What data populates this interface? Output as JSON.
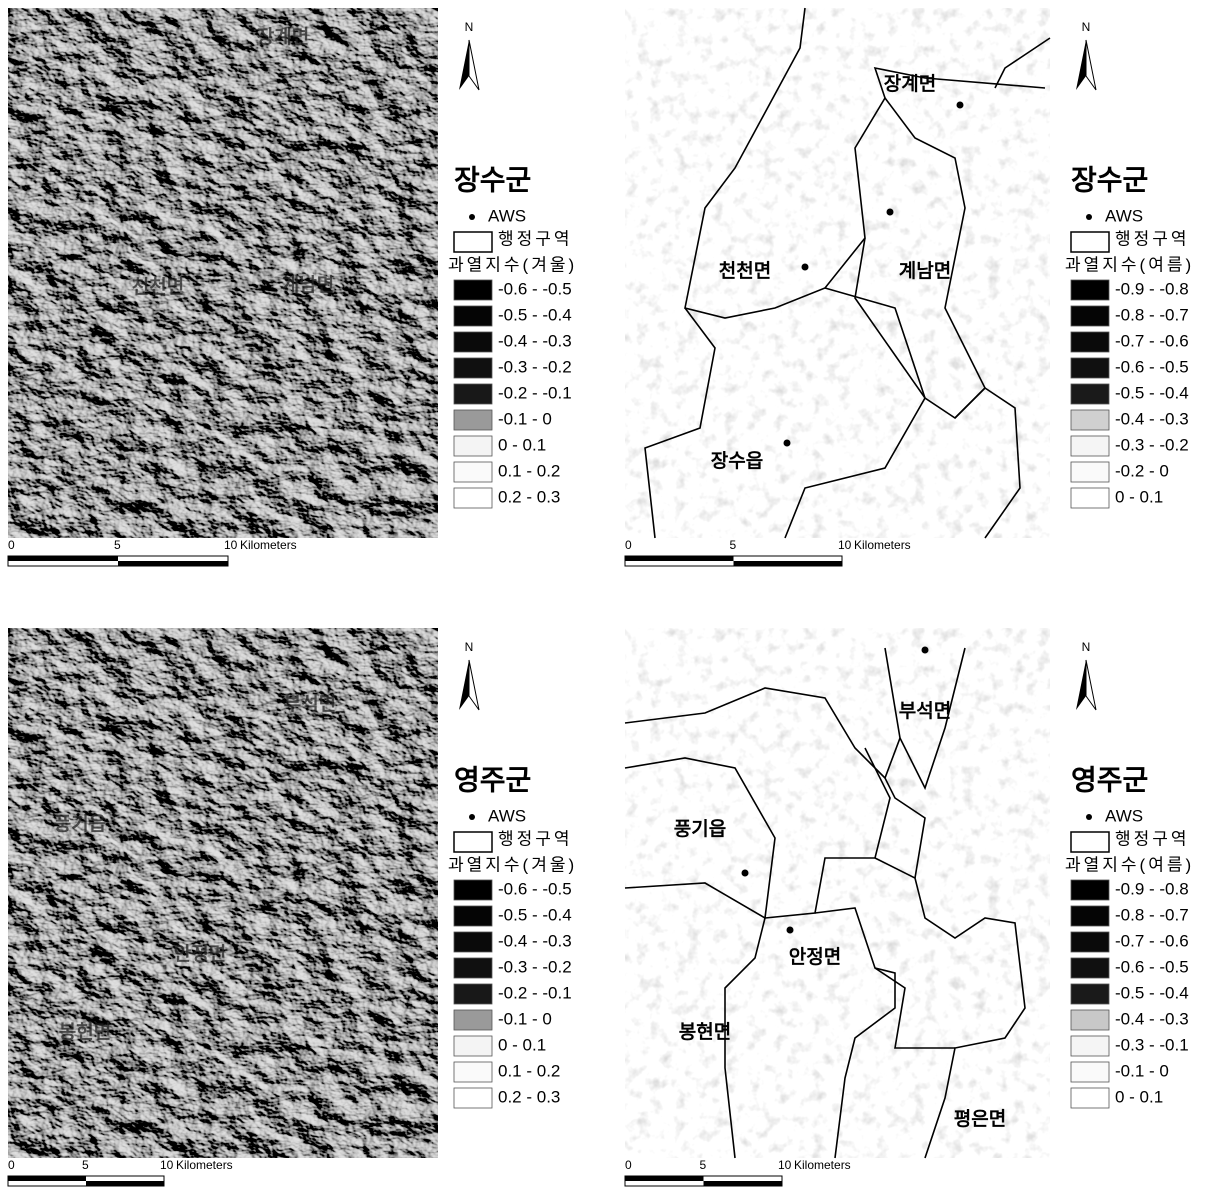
{
  "panels": [
    {
      "place_labels": [
        "장계면",
        "천천면",
        "계남면"
      ],
      "north": "N",
      "legend": {
        "title": "장수군",
        "aws": "AWS",
        "admin": "행정구역",
        "index_title": "과열지수(겨울)",
        "items": [
          {
            "label": "-0.6 - -0.5",
            "color": "#000000"
          },
          {
            "label": "-0.5 - -0.4",
            "color": "#050505"
          },
          {
            "label": "-0.4 - -0.3",
            "color": "#0a0a0a"
          },
          {
            "label": "-0.3 - -0.2",
            "color": "#101010"
          },
          {
            "label": "-0.2 - -0.1",
            "color": "#181818"
          },
          {
            "label": "-0.1 - 0",
            "color": "#9a9a9a"
          },
          {
            "label": "0 - 0.1",
            "color": "#f4f4f4"
          },
          {
            "label": "0.1 - 0.2",
            "color": "#fafafa"
          },
          {
            "label": "0.2 - 0.3",
            "color": "#ffffff"
          }
        ]
      },
      "scale": {
        "ticks": [
          "0",
          "5",
          "10"
        ],
        "unit": "Kilometers"
      }
    },
    {
      "place_labels": [
        "장계면",
        "천천면",
        "계남면",
        "장수읍"
      ],
      "north": "N",
      "legend": {
        "title": "장수군",
        "aws": "AWS",
        "admin": "행정구역",
        "index_title": "과열지수(여름)",
        "items": [
          {
            "label": "-0.9 - -0.8",
            "color": "#000000"
          },
          {
            "label": "-0.8 - -0.7",
            "color": "#050505"
          },
          {
            "label": "-0.7 - -0.6",
            "color": "#0a0a0a"
          },
          {
            "label": "-0.6 - -0.5",
            "color": "#101010"
          },
          {
            "label": "-0.5 - -0.4",
            "color": "#1a1a1a"
          },
          {
            "label": "-0.4 - -0.3",
            "color": "#d0d0d0"
          },
          {
            "label": "-0.3 - -0.2",
            "color": "#f5f5f5"
          },
          {
            "label": "-0.2 - 0",
            "color": "#fafafa"
          },
          {
            "label": "0 - 0.1",
            "color": "#ffffff"
          }
        ]
      },
      "scale": {
        "ticks": [
          "0",
          "5",
          "10"
        ],
        "unit": "Kilometers"
      }
    },
    {
      "place_labels": [
        "부석면",
        "풍기읍",
        "안정면",
        "봉현면"
      ],
      "north": "N",
      "legend": {
        "title": "영주군",
        "aws": "AWS",
        "admin": "행정구역",
        "index_title": "과열지수(겨울)",
        "items": [
          {
            "label": "-0.6 - -0.5",
            "color": "#000000"
          },
          {
            "label": "-0.5 - -0.4",
            "color": "#050505"
          },
          {
            "label": "-0.4 - -0.3",
            "color": "#0a0a0a"
          },
          {
            "label": "-0.3 - -0.2",
            "color": "#101010"
          },
          {
            "label": "-0.2 - -0.1",
            "color": "#181818"
          },
          {
            "label": "-0.1 - 0",
            "color": "#9a9a9a"
          },
          {
            "label": "0 - 0.1",
            "color": "#f4f4f4"
          },
          {
            "label": "0.1 - 0.2",
            "color": "#fafafa"
          },
          {
            "label": "0.2 - 0.3",
            "color": "#ffffff"
          }
        ]
      },
      "scale": {
        "ticks": [
          "0",
          "5",
          "10"
        ],
        "unit": "Kilometers"
      }
    },
    {
      "place_labels": [
        "부석면",
        "풍기읍",
        "안정면",
        "봉현면",
        "평은면"
      ],
      "north": "N",
      "legend": {
        "title": "영주군",
        "aws": "AWS",
        "admin": "행정구역",
        "index_title": "과열지수(여름)",
        "items": [
          {
            "label": "-0.9 - -0.8",
            "color": "#000000"
          },
          {
            "label": "-0.8 - -0.7",
            "color": "#050505"
          },
          {
            "label": "-0.7 - -0.6",
            "color": "#0a0a0a"
          },
          {
            "label": "-0.6 - -0.5",
            "color": "#101010"
          },
          {
            "label": "-0.5 - -0.4",
            "color": "#1a1a1a"
          },
          {
            "label": "-0.4 - -0.3",
            "color": "#c8c8c8"
          },
          {
            "label": "-0.3 - -0.1",
            "color": "#f5f5f5"
          },
          {
            "label": "-0.1 - 0",
            "color": "#fafafa"
          },
          {
            "label": "0 - 0.1",
            "color": "#ffffff"
          }
        ]
      },
      "scale": {
        "ticks": [
          "0",
          "5",
          "10"
        ],
        "unit": "Kilometers"
      }
    }
  ]
}
